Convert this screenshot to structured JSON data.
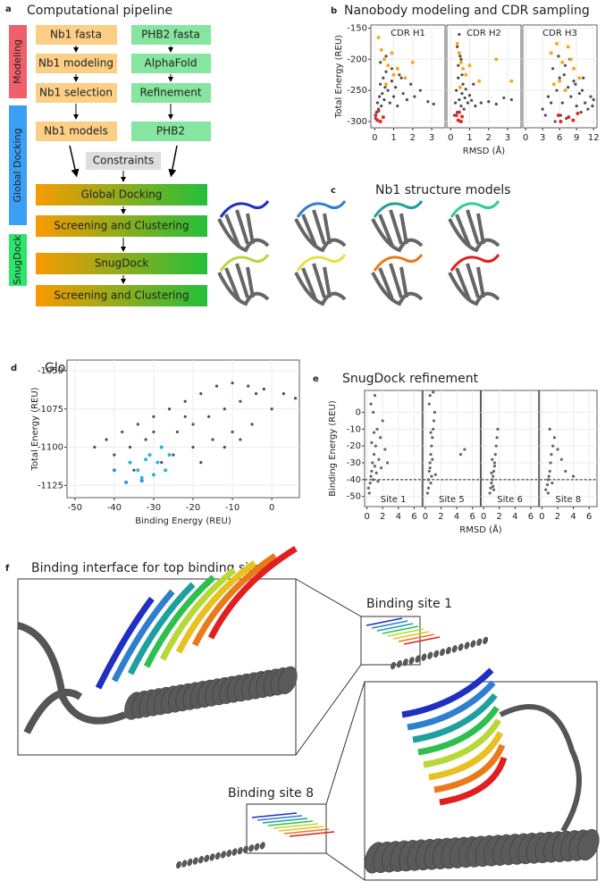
{
  "panel_labels": [
    "a",
    "b",
    "c",
    "d",
    "e",
    "f"
  ],
  "pipeline": {
    "title": "Computational pipeline",
    "stages": [
      "Modeling",
      "Global Docking",
      "SnugDock"
    ],
    "nodes": [
      "Nb1 fasta",
      "PHB2 fasta",
      "Nb1 modeling",
      "AlphaFold",
      "Nb1 selection",
      "Refinement",
      "Nb1 models",
      "PHB2",
      "Constraints",
      "Global Docking",
      "Screening and Clustering",
      "SnugDock",
      "Screening and Clustering"
    ]
  },
  "structures": {
    "title": "Nb1 structure models"
  },
  "interface": {
    "title": "Binding interface for top binding sites",
    "sites": [
      "Binding site 1",
      "Binding site 8"
    ]
  },
  "chart_data": [
    {
      "type": "scatter",
      "title": "Nanobody modeling and CDR sampling",
      "x_label": "RMSD (Å)",
      "y_label": "Total Energy (REU)",
      "ylim": [
        -310,
        -145
      ],
      "yticks": [
        -150,
        -200,
        -250,
        -300
      ],
      "grid": true,
      "facet_label_position": "top",
      "facets": [
        {
          "title": "CDR H1",
          "xlim": [
            -0.2,
            3.7
          ],
          "xticks": [
            0,
            1,
            2,
            3
          ],
          "series": [
            {
              "color": "#4d4d4d",
              "x": [
                0.05,
                0.1,
                0.15,
                0.2,
                0.25,
                0.3,
                0.35,
                0.4,
                0.45,
                0.5,
                0.55,
                0.6,
                0.7,
                0.8,
                0.9,
                1.0,
                1.1,
                1.2,
                1.3,
                1.5,
                1.7,
                1.9,
                2.1,
                2.4,
                2.8,
                0.3,
                0.6,
                0.9,
                1.4,
                3.1
              ],
              "y": [
                -295,
                -285,
                -270,
                -280,
                -260,
                -240,
                -275,
                -255,
                -230,
                -265,
                -245,
                -220,
                -250,
                -270,
                -235,
                -260,
                -245,
                -275,
                -225,
                -255,
                -265,
                -240,
                -260,
                -250,
                -268,
                -205,
                -195,
                -215,
                -230,
                -272
              ]
            },
            {
              "color": "#f7a81b",
              "x": [
                0.2,
                0.35,
                0.5,
                0.7,
                0.9,
                1.2,
                1.6,
                2.0,
                0.6,
                1.0
              ],
              "y": [
                -165,
                -185,
                -200,
                -210,
                -190,
                -215,
                -230,
                -205,
                -240,
                -225
              ]
            },
            {
              "color": "#e8251e",
              "x": [
                0.05,
                0.15,
                0.2,
                0.3,
                0.45
              ],
              "y": [
                -290,
                -298,
                -283,
                -300,
                -293
              ]
            }
          ]
        },
        {
          "title": "CDR H2",
          "xlim": [
            -0.2,
            3.7
          ],
          "xticks": [
            0,
            1,
            2,
            3
          ],
          "series": [
            {
              "color": "#4d4d4d",
              "x": [
                0.2,
                0.25,
                0.3,
                0.35,
                0.4,
                0.4,
                0.45,
                0.5,
                0.5,
                0.55,
                0.6,
                0.6,
                0.65,
                0.7,
                0.75,
                0.8,
                0.9,
                1.0,
                1.1,
                1.3,
                1.6,
                2.0,
                2.4,
                2.8,
                3.2,
                0.35,
                0.45,
                0.55,
                0.5,
                1.2
              ],
              "y": [
                -290,
                -270,
                -250,
                -285,
                -230,
                -210,
                -265,
                -195,
                -245,
                -275,
                -225,
                -255,
                -240,
                -280,
                -262,
                -248,
                -270,
                -258,
                -266,
                -275,
                -270,
                -268,
                -272,
                -262,
                -265,
                -180,
                -160,
                -200,
                -300,
                -240
              ]
            },
            {
              "color": "#f7a81b",
              "x": [
                0.35,
                0.45,
                0.55,
                0.65,
                0.8,
                1.0,
                1.5,
                2.4,
                3.2,
                0.5
              ],
              "y": [
                -175,
                -190,
                -205,
                -215,
                -225,
                -210,
                -235,
                -200,
                -235,
                -245
              ]
            },
            {
              "color": "#e8251e",
              "x": [
                0.3,
                0.4,
                0.45,
                0.55,
                0.6
              ],
              "y": [
                -290,
                -298,
                -285,
                -300,
                -292
              ]
            }
          ]
        },
        {
          "title": "CDR H3",
          "xlim": [
            -0.5,
            12.6
          ],
          "xticks": [
            0,
            3,
            6,
            9,
            12
          ],
          "series": [
            {
              "color": "#4d4d4d",
              "x": [
                3,
                3.5,
                4,
                4.5,
                5,
                5.5,
                6,
                6.5,
                7,
                7.5,
                8,
                8.5,
                9,
                9.5,
                10,
                10.5,
                11,
                11.5,
                12,
                4.8,
                5.8,
                6.8,
                7.8,
                8.8,
                9.8,
                11.8,
                6.2,
                7.2,
                5.2,
                10.2
              ],
              "y": [
                -280,
                -290,
                -260,
                -270,
                -240,
                -250,
                -230,
                -270,
                -210,
                -245,
                -260,
                -235,
                -275,
                -255,
                -250,
                -270,
                -280,
                -260,
                -265,
                -215,
                -195,
                -225,
                -200,
                -240,
                -285,
                -275,
                -290,
                -295,
                -300,
                -230
              ]
            },
            {
              "color": "#f7a81b",
              "x": [
                4.5,
                5.5,
                6.5,
                7.5,
                8.5,
                9.5,
                6,
                7,
                8,
                5
              ],
              "y": [
                -190,
                -175,
                -205,
                -180,
                -215,
                -230,
                -235,
                -250,
                -200,
                -240
              ]
            },
            {
              "color": "#e8251e",
              "x": [
                5.8,
                6.2,
                7.6,
                8.4,
                9.2
              ],
              "y": [
                -290,
                -300,
                -293,
                -298,
                -287
              ]
            }
          ]
        }
      ]
    },
    {
      "type": "scatter",
      "title": "Global docking",
      "x_label": "Binding Energy (REU)",
      "y_label": "Total Energy (REU)",
      "xlim": [
        -52,
        7
      ],
      "xticks": [
        -50,
        -40,
        -30,
        -20,
        -10,
        0
      ],
      "ylim": [
        -1133,
        -1043
      ],
      "yticks": [
        -1050,
        -1075,
        -1100,
        -1125
      ],
      "grid": true,
      "series": [
        {
          "color": "#4d4d4d",
          "x": [
            -45,
            -42,
            -40,
            -38,
            -36,
            -34,
            -32,
            -30,
            -28,
            -26,
            -24,
            -22,
            -20,
            -18,
            -16,
            -14,
            -12,
            -10,
            -8,
            -6,
            -4,
            -2,
            0,
            3,
            6,
            -25,
            -20,
            -15,
            -10,
            -5,
            -18,
            -12,
            -8,
            -28,
            -35,
            -30,
            -22
          ],
          "y": [
            -1100,
            -1095,
            -1105,
            -1090,
            -1100,
            -1085,
            -1095,
            -1080,
            -1100,
            -1075,
            -1090,
            -1070,
            -1085,
            -1065,
            -1080,
            -1060,
            -1075,
            -1058,
            -1070,
            -1060,
            -1065,
            -1062,
            -1075,
            -1065,
            -1068,
            -1105,
            -1100,
            -1095,
            -1090,
            -1085,
            -1110,
            -1100,
            -1095,
            -1110,
            -1115,
            -1090,
            -1080
          ]
        },
        {
          "color": "#29b6d6",
          "x": [
            -36,
            -34,
            -33,
            -31,
            -30,
            -29,
            -28,
            -27,
            -32,
            -26
          ],
          "y": [
            -1110,
            -1115,
            -1120,
            -1105,
            -1118,
            -1110,
            -1100,
            -1115,
            -1108,
            -1105
          ]
        },
        {
          "color": "#3b8bd6",
          "x": [
            -40,
            -37,
            -33
          ],
          "y": [
            -1115,
            -1123,
            -1122
          ]
        }
      ]
    },
    {
      "type": "scatter",
      "title": "SnugDock refinement",
      "x_label": "RMSD (Å)",
      "y_label": "Binding Energy (REU)",
      "ylim": [
        -56,
        13
      ],
      "yticks": [
        0,
        -10,
        -20,
        -30,
        -40,
        -50
      ],
      "grid": true,
      "reference_line": -40,
      "facet_label_position": "bottom",
      "facets": [
        {
          "title": "Site 1",
          "xlim": [
            -0.3,
            7
          ],
          "xticks": [
            0,
            2,
            4,
            6
          ],
          "series": [
            {
              "color": "#666666",
              "x": [
                0.2,
                0.4,
                0.5,
                0.6,
                0.7,
                0.8,
                0.9,
                1.0,
                1.1,
                1.2,
                1.3,
                1.5,
                1.7,
                2.0,
                2.3,
                2.6,
                0.5,
                0.8,
                1.0,
                0.3,
                1.4,
                0.6,
                1.8,
                0.9
              ],
              "y": [
                -45,
                -42,
                -38,
                -35,
                -30,
                -40,
                -25,
                -32,
                -20,
                -36,
                -10,
                -28,
                -15,
                -5,
                -22,
                -30,
                5,
                0,
                10,
                -48,
                -41,
                -18,
                -33,
                -12
              ]
            }
          ]
        },
        {
          "title": "Site 5",
          "xlim": [
            -0.3,
            7
          ],
          "xticks": [
            0,
            2,
            4,
            6
          ],
          "series": [
            {
              "color": "#666666",
              "x": [
                0.3,
                0.4,
                0.5,
                0.6,
                0.7,
                0.8,
                0.9,
                1.0,
                1.1,
                1.2,
                0.5,
                0.6,
                0.7,
                0.8,
                0.9,
                4.5,
                5.0,
                1.0,
                0.4,
                0.6,
                1.3,
                0.7
              ],
              "y": [
                -48,
                -40,
                -35,
                -30,
                -25,
                -20,
                -15,
                -10,
                -5,
                0,
                5,
                10,
                -42,
                -38,
                -28,
                -25,
                -22,
                12,
                -45,
                -33,
                -37,
                -12
              ]
            }
          ]
        },
        {
          "title": "Site 6",
          "xlim": [
            -0.3,
            7
          ],
          "xticks": [
            0,
            2,
            4,
            6
          ],
          "series": [
            {
              "color": "#666666",
              "x": [
                0.8,
                0.9,
                1.0,
                1.1,
                1.2,
                1.3,
                1.4,
                1.5,
                1.6,
                1.8,
                1.0,
                1.2,
                1.4,
                1.1,
                1.3,
                1.7
              ],
              "y": [
                -48,
                -45,
                -42,
                -40,
                -38,
                -35,
                -30,
                -25,
                -20,
                -10,
                -36,
                -44,
                -32,
                -28,
                -46,
                -15
              ]
            }
          ]
        },
        {
          "title": "Site 8",
          "xlim": [
            -0.3,
            7
          ],
          "xticks": [
            0,
            2,
            4,
            6
          ],
          "series": [
            {
              "color": "#666666",
              "x": [
                0.5,
                0.7,
                0.8,
                0.9,
                1.0,
                1.1,
                1.2,
                1.4,
                1.6,
                2.0,
                2.5,
                3.0,
                1.0,
                0.8,
                1.3,
                4.0
              ],
              "y": [
                -46,
                -43,
                -40,
                -38,
                -35,
                -30,
                -25,
                -20,
                -15,
                -22,
                -28,
                -35,
                -10,
                -48,
                -42,
                -38
              ]
            }
          ]
        }
      ]
    }
  ]
}
